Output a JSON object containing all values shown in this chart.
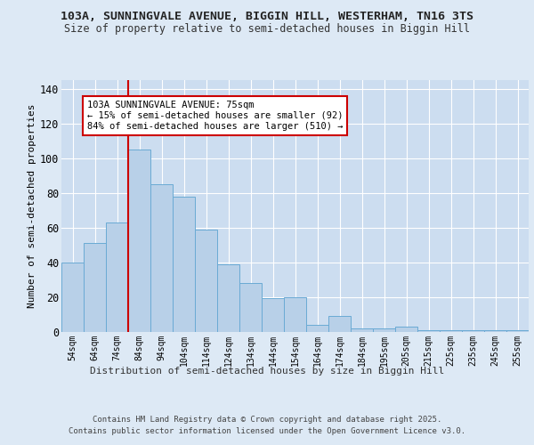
{
  "title1": "103A, SUNNINGVALE AVENUE, BIGGIN HILL, WESTERHAM, TN16 3TS",
  "title2": "Size of property relative to semi-detached houses in Biggin Hill",
  "xlabel": "Distribution of semi-detached houses by size in Biggin Hill",
  "ylabel": "Number of semi-detached properties",
  "categories": [
    "54sqm",
    "64sqm",
    "74sqm",
    "84sqm",
    "94sqm",
    "104sqm",
    "114sqm",
    "124sqm",
    "134sqm",
    "144sqm",
    "154sqm",
    "164sqm",
    "174sqm",
    "184sqm",
    "195sqm",
    "205sqm",
    "215sqm",
    "225sqm",
    "235sqm",
    "245sqm",
    "255sqm"
  ],
  "values": [
    40,
    51,
    63,
    105,
    85,
    78,
    59,
    39,
    28,
    19,
    20,
    4,
    9,
    2,
    2,
    3,
    1,
    1,
    1,
    1,
    1
  ],
  "bar_color": "#b8d0e8",
  "bar_edge_color": "#6aaad4",
  "background_color": "#dde9f5",
  "plot_background": "#ccddf0",
  "grid_color": "#ffffff",
  "red_line_index": 2.5,
  "annotation_text": "103A SUNNINGVALE AVENUE: 75sqm\n← 15% of semi-detached houses are smaller (92)\n84% of semi-detached houses are larger (510) →",
  "annotation_box_color": "#ffffff",
  "annotation_border_color": "#cc0000",
  "footer1": "Contains HM Land Registry data © Crown copyright and database right 2025.",
  "footer2": "Contains public sector information licensed under the Open Government Licence v3.0.",
  "ylim": [
    0,
    145
  ],
  "yticks": [
    0,
    20,
    40,
    60,
    80,
    100,
    120,
    140
  ],
  "title1_fontsize": 9.5,
  "title2_fontsize": 8.5
}
